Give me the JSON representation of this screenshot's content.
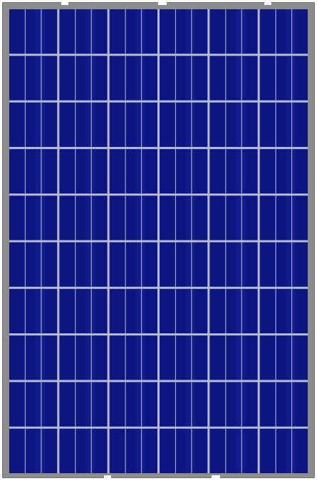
{
  "image": {
    "subject": "solar-panel",
    "cell_grid": {
      "columns": 6,
      "rows": 10
    },
    "busbars_per_cell": 2,
    "colors": {
      "frame": "#8c8c8e",
      "cell": "#0c1582",
      "cell_highlight": "#1b2a9a",
      "gap": "#b9bbd4",
      "busbar": "#c7c9dc"
    }
  }
}
